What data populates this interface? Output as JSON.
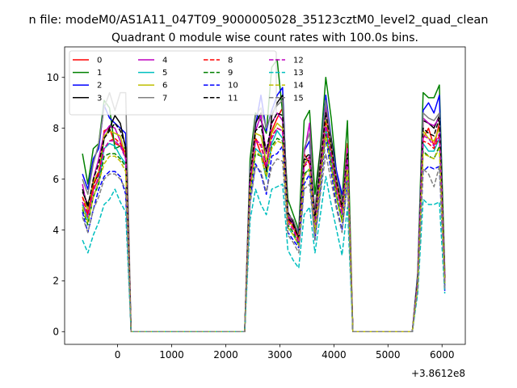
{
  "figure": {
    "suptitle": "n file: modeM0/AS1A11_047T09_9000005028_35123cztM0_level2_quad_clean",
    "title": "Quadrant 0 module wise count rates with 100.0s bins.",
    "offset_text": "+3.8612e8"
  },
  "chart_data": {
    "type": "line",
    "title": "Quadrant 0 module wise count rates with 100.0s bins.",
    "xlabel": "",
    "ylabel": "",
    "x_offset": 386120000,
    "xlim": [
      -980,
      6430
    ],
    "ylim": [
      -0.5,
      11.2
    ],
    "xticks": [
      0,
      1000,
      2000,
      3000,
      4000,
      5000,
      6000
    ],
    "yticks": [
      0,
      2,
      4,
      6,
      8,
      10
    ],
    "legend_position": "upper left",
    "legend_columns": 4,
    "x": [
      -650,
      -550,
      -450,
      -350,
      -250,
      -150,
      -50,
      50,
      150,
      250,
      350,
      450,
      550,
      650,
      750,
      850,
      950,
      1050,
      1150,
      1250,
      1350,
      1450,
      1550,
      1650,
      1750,
      1850,
      1950,
      2050,
      2150,
      2250,
      2350,
      2450,
      2550,
      2650,
      2750,
      2850,
      2950,
      3050,
      3150,
      3250,
      3350,
      3450,
      3550,
      3650,
      3750,
      3850,
      3950,
      4050,
      4150,
      4250,
      4350,
      4450,
      4550,
      4650,
      4750,
      4850,
      4950,
      5050,
      5150,
      5250,
      5350,
      5450,
      5550,
      5650,
      5750,
      5850,
      5950,
      6050
    ],
    "series": [
      {
        "name": "0",
        "color": "#ff0000",
        "dash": "solid",
        "values": [
          5.0,
          4.6,
          5.6,
          6.0,
          7.9,
          8.0,
          7.4,
          7.3,
          6.9,
          0,
          0,
          0,
          0,
          0,
          0,
          0,
          0,
          0,
          0,
          0,
          0,
          0,
          0,
          0,
          0,
          0,
          0,
          0,
          0,
          0,
          0,
          5.8,
          7.6,
          7.0,
          6.4,
          7.9,
          8.4,
          8.8,
          4.5,
          4.2,
          3.8,
          7.0,
          6.6,
          4.1,
          6.4,
          8.8,
          7.2,
          5.6,
          4.8,
          7.4,
          0,
          0,
          0,
          0,
          0,
          0,
          0,
          0,
          0,
          0,
          0,
          0,
          2.0,
          7.6,
          8.0,
          7.3,
          8.2,
          2.1
        ]
      },
      {
        "name": "1",
        "color": "#008000",
        "dash": "solid",
        "values": [
          7.0,
          5.8,
          7.2,
          7.4,
          9.1,
          8.8,
          7.2,
          7.3,
          7.2,
          0,
          0,
          0,
          0,
          0,
          0,
          0,
          0,
          0,
          0,
          0,
          0,
          0,
          0,
          0,
          0,
          0,
          0,
          0,
          0,
          0,
          0,
          6.8,
          8.6,
          8.3,
          7.8,
          10.4,
          10.7,
          8.6,
          5.2,
          4.6,
          4.0,
          8.3,
          8.7,
          5.4,
          7.2,
          10.0,
          8.4,
          6.2,
          5.2,
          8.3,
          0,
          0,
          0,
          0,
          0,
          0,
          0,
          0,
          0,
          0,
          0,
          0,
          2.3,
          9.4,
          9.2,
          9.2,
          9.7,
          2.4
        ]
      },
      {
        "name": "2",
        "color": "#0000ff",
        "dash": "solid",
        "values": [
          6.2,
          5.6,
          6.8,
          7.2,
          8.9,
          8.4,
          8.2,
          8.0,
          7.8,
          0,
          0,
          0,
          0,
          0,
          0,
          0,
          0,
          0,
          0,
          0,
          0,
          0,
          0,
          0,
          0,
          0,
          0,
          0,
          0,
          0,
          0,
          6.4,
          8.1,
          9.3,
          7.9,
          8.7,
          9.3,
          9.6,
          4.4,
          4.3,
          3.9,
          7.1,
          7.5,
          4.6,
          6.9,
          9.3,
          7.6,
          6.3,
          5.4,
          6.3,
          0,
          0,
          0,
          0,
          0,
          0,
          0,
          0,
          0,
          0,
          0,
          0,
          2.2,
          8.7,
          9.0,
          8.6,
          9.3,
          1.6
        ]
      },
      {
        "name": "3",
        "color": "#000000",
        "dash": "solid",
        "values": [
          5.5,
          5.0,
          5.8,
          6.2,
          7.6,
          8.0,
          8.5,
          8.2,
          7.2,
          0,
          0,
          0,
          0,
          0,
          0,
          0,
          0,
          0,
          0,
          0,
          0,
          0,
          0,
          0,
          0,
          0,
          0,
          0,
          0,
          0,
          0,
          6.2,
          8.2,
          8.6,
          6.3,
          8.5,
          9.0,
          9.3,
          4.7,
          4.3,
          3.7,
          6.8,
          6.7,
          4.7,
          7.1,
          8.8,
          7.6,
          6.0,
          5.0,
          6.8,
          0,
          0,
          0,
          0,
          0,
          0,
          0,
          0,
          0,
          0,
          0,
          0,
          2.0,
          8.3,
          8.2,
          8.0,
          8.5,
          2.1
        ]
      },
      {
        "name": "4",
        "color": "#bf00bf",
        "dash": "solid",
        "values": [
          5.8,
          4.7,
          6.0,
          6.8,
          7.8,
          8.1,
          8.0,
          7.5,
          6.8,
          0,
          0,
          0,
          0,
          0,
          0,
          0,
          0,
          0,
          0,
          0,
          0,
          0,
          0,
          0,
          0,
          0,
          0,
          0,
          0,
          0,
          0,
          6.3,
          7.9,
          8.5,
          7.0,
          8.2,
          8.6,
          8.3,
          4.6,
          4.2,
          3.5,
          7.0,
          8.2,
          4.3,
          6.6,
          8.9,
          7.2,
          6.0,
          5.0,
          7.2,
          0,
          0,
          0,
          0,
          0,
          0,
          0,
          0,
          0,
          0,
          0,
          0,
          2.1,
          8.4,
          8.2,
          8.1,
          8.4,
          2.2
        ]
      },
      {
        "name": "5",
        "color": "#00bfbf",
        "dash": "solid",
        "values": [
          5.0,
          4.4,
          5.3,
          5.9,
          7.2,
          7.4,
          7.3,
          6.9,
          6.6,
          0,
          0,
          0,
          0,
          0,
          0,
          0,
          0,
          0,
          0,
          0,
          0,
          0,
          0,
          0,
          0,
          0,
          0,
          0,
          0,
          0,
          0,
          5.4,
          7.2,
          7.0,
          6.0,
          7.4,
          7.9,
          7.6,
          4.1,
          3.8,
          3.4,
          6.2,
          6.4,
          3.8,
          6.0,
          8.0,
          6.8,
          5.3,
          4.4,
          6.5,
          0,
          0,
          0,
          0,
          0,
          0,
          0,
          0,
          0,
          0,
          0,
          0,
          1.8,
          7.4,
          7.1,
          7.1,
          7.6,
          1.9
        ]
      },
      {
        "name": "6",
        "color": "#bfbf00",
        "dash": "solid",
        "values": [
          5.3,
          4.8,
          5.9,
          6.3,
          7.7,
          7.9,
          7.8,
          7.7,
          6.9,
          0,
          0,
          0,
          0,
          0,
          0,
          0,
          0,
          0,
          0,
          0,
          0,
          0,
          0,
          0,
          0,
          0,
          0,
          0,
          0,
          0,
          0,
          6.0,
          7.8,
          7.7,
          6.7,
          7.8,
          8.2,
          8.0,
          4.4,
          4.1,
          3.6,
          6.6,
          6.9,
          4.3,
          6.4,
          8.3,
          7.2,
          5.8,
          4.8,
          7.0,
          0,
          0,
          0,
          0,
          0,
          0,
          0,
          0,
          0,
          0,
          0,
          0,
          2.0,
          7.9,
          7.6,
          7.5,
          8.0,
          2.0
        ]
      },
      {
        "name": "7",
        "color": "#808080",
        "dash": "solid",
        "values": [
          6.0,
          5.4,
          6.6,
          7.4,
          8.8,
          9.4,
          8.7,
          9.4,
          9.4,
          0,
          0,
          0,
          0,
          0,
          0,
          0,
          0,
          0,
          0,
          0,
          0,
          0,
          0,
          0,
          0,
          0,
          0,
          0,
          0,
          0,
          0,
          6.3,
          8.5,
          8.8,
          8.0,
          8.6,
          8.9,
          9.1,
          4.6,
          4.4,
          3.8,
          7.2,
          7.8,
          4.6,
          6.9,
          9.1,
          7.4,
          6.1,
          5.1,
          7.0,
          0,
          0,
          0,
          0,
          0,
          0,
          0,
          0,
          0,
          0,
          0,
          0,
          2.1,
          8.6,
          8.4,
          8.3,
          8.6,
          2.2
        ]
      },
      {
        "name": "8",
        "color": "#ff0000",
        "dash": "dashed",
        "values": [
          5.3,
          4.6,
          5.7,
          6.3,
          7.2,
          7.5,
          7.6,
          7.4,
          7.0,
          0,
          0,
          0,
          0,
          0,
          0,
          0,
          0,
          0,
          0,
          0,
          0,
          0,
          0,
          0,
          0,
          0,
          0,
          0,
          0,
          0,
          0,
          5.9,
          7.6,
          7.3,
          6.5,
          7.7,
          8.0,
          7.9,
          4.4,
          4.1,
          3.6,
          6.5,
          6.7,
          4.2,
          6.3,
          8.2,
          7.0,
          5.6,
          4.7,
          6.8,
          0,
          0,
          0,
          0,
          0,
          0,
          0,
          0,
          0,
          0,
          0,
          0,
          1.9,
          7.5,
          7.4,
          7.2,
          7.7,
          2.0
        ]
      },
      {
        "name": "9",
        "color": "#008000",
        "dash": "dashed",
        "values": [
          4.8,
          4.2,
          5.3,
          5.8,
          6.9,
          7.0,
          7.0,
          6.8,
          6.5,
          0,
          0,
          0,
          0,
          0,
          0,
          0,
          0,
          0,
          0,
          0,
          0,
          0,
          0,
          0,
          0,
          0,
          0,
          0,
          0,
          0,
          0,
          5.5,
          7.0,
          6.9,
          6.1,
          7.3,
          7.6,
          7.5,
          4.2,
          3.9,
          3.4,
          6.2,
          6.4,
          3.9,
          6.0,
          7.8,
          6.6,
          5.3,
          4.4,
          6.5,
          0,
          0,
          0,
          0,
          0,
          0,
          0,
          0,
          0,
          0,
          0,
          0,
          1.8,
          7.1,
          6.9,
          6.8,
          7.3,
          1.9
        ]
      },
      {
        "name": "10",
        "color": "#0000ff",
        "dash": "dashed",
        "values": [
          4.7,
          3.9,
          4.8,
          5.6,
          6.1,
          6.3,
          6.3,
          6.1,
          5.4,
          0,
          0,
          0,
          0,
          0,
          0,
          0,
          0,
          0,
          0,
          0,
          0,
          0,
          0,
          0,
          0,
          0,
          0,
          0,
          0,
          0,
          0,
          5.2,
          6.6,
          6.2,
          5.4,
          6.9,
          7.0,
          7.3,
          3.9,
          3.6,
          3.3,
          5.8,
          6.2,
          3.6,
          5.6,
          7.6,
          6.3,
          4.9,
          4.0,
          5.9,
          0,
          0,
          0,
          0,
          0,
          0,
          0,
          0,
          0,
          0,
          0,
          0,
          1.8,
          6.3,
          6.5,
          6.4,
          6.5,
          1.8
        ]
      },
      {
        "name": "11",
        "color": "#000000",
        "dash": "dashed",
        "values": [
          5.6,
          4.9,
          6.0,
          6.6,
          7.6,
          7.9,
          8.2,
          7.9,
          7.3,
          0,
          0,
          0,
          0,
          0,
          0,
          0,
          0,
          0,
          0,
          0,
          0,
          0,
          0,
          0,
          0,
          0,
          0,
          0,
          0,
          0,
          0,
          6.1,
          7.9,
          8.1,
          7.1,
          8.2,
          8.6,
          8.5,
          4.5,
          4.2,
          3.7,
          6.8,
          7.0,
          4.4,
          6.6,
          8.6,
          7.3,
          5.9,
          4.9,
          7.0,
          0,
          0,
          0,
          0,
          0,
          0,
          0,
          0,
          0,
          0,
          0,
          0,
          2.0,
          8.0,
          7.8,
          7.7,
          8.4,
          2.1
        ]
      },
      {
        "name": "12",
        "color": "#bf00bf",
        "dash": "dashed",
        "values": [
          5.1,
          4.5,
          5.5,
          6.1,
          7.2,
          7.5,
          7.5,
          7.3,
          6.8,
          0,
          0,
          0,
          0,
          0,
          0,
          0,
          0,
          0,
          0,
          0,
          0,
          0,
          0,
          0,
          0,
          0,
          0,
          0,
          0,
          0,
          0,
          5.8,
          7.5,
          7.4,
          6.5,
          7.6,
          8.0,
          7.9,
          4.3,
          4.0,
          3.5,
          6.5,
          6.9,
          4.1,
          6.2,
          8.1,
          6.9,
          5.6,
          4.6,
          6.8,
          0,
          0,
          0,
          0,
          0,
          0,
          0,
          0,
          0,
          0,
          0,
          0,
          1.9,
          7.7,
          7.6,
          7.3,
          7.8,
          2.0
        ]
      },
      {
        "name": "13",
        "color": "#00bfbf",
        "dash": "dashed",
        "values": [
          3.6,
          3.1,
          3.8,
          4.3,
          5.0,
          5.2,
          5.6,
          5.1,
          4.7,
          0,
          0,
          0,
          0,
          0,
          0,
          0,
          0,
          0,
          0,
          0,
          0,
          0,
          0,
          0,
          0,
          0,
          0,
          0,
          0,
          0,
          0,
          4.4,
          5.6,
          5.0,
          4.6,
          5.6,
          5.7,
          5.8,
          3.2,
          2.8,
          2.5,
          4.6,
          4.9,
          3.1,
          4.6,
          6.1,
          5.0,
          4.0,
          3.0,
          4.9,
          0,
          0,
          0,
          0,
          0,
          0,
          0,
          0,
          0,
          0,
          0,
          0,
          1.5,
          5.2,
          5.0,
          5.0,
          5.1,
          1.5
        ]
      },
      {
        "name": "14",
        "color": "#bfbf00",
        "dash": "dashed",
        "values": [
          4.9,
          4.3,
          5.3,
          5.9,
          6.6,
          6.9,
          6.9,
          6.7,
          6.3,
          0,
          0,
          0,
          0,
          0,
          0,
          0,
          0,
          0,
          0,
          0,
          0,
          0,
          0,
          0,
          0,
          0,
          0,
          0,
          0,
          0,
          0,
          5.5,
          7.1,
          6.9,
          6.1,
          7.2,
          7.5,
          7.4,
          4.1,
          3.8,
          3.4,
          6.1,
          6.4,
          3.9,
          5.9,
          7.7,
          6.5,
          5.2,
          4.3,
          6.4,
          0,
          0,
          0,
          0,
          0,
          0,
          0,
          0,
          0,
          0,
          0,
          0,
          1.8,
          7.0,
          6.9,
          6.8,
          7.2,
          1.9
        ]
      },
      {
        "name": "15",
        "color": "#808080",
        "dash": "dashed",
        "values": [
          4.5,
          3.9,
          4.8,
          5.3,
          6.0,
          6.2,
          6.2,
          6.0,
          5.6,
          0,
          0,
          0,
          0,
          0,
          0,
          0,
          0,
          0,
          0,
          0,
          0,
          0,
          0,
          0,
          0,
          0,
          0,
          0,
          0,
          0,
          0,
          5.0,
          6.5,
          6.3,
          5.5,
          6.5,
          6.8,
          6.7,
          3.8,
          3.5,
          3.1,
          5.6,
          5.8,
          3.6,
          5.4,
          7.0,
          5.9,
          4.8,
          3.9,
          5.8,
          0,
          0,
          0,
          0,
          0,
          0,
          0,
          0,
          0,
          0,
          0,
          0,
          1.7,
          6.4,
          6.2,
          5.7,
          6.5,
          1.7
        ]
      }
    ]
  }
}
